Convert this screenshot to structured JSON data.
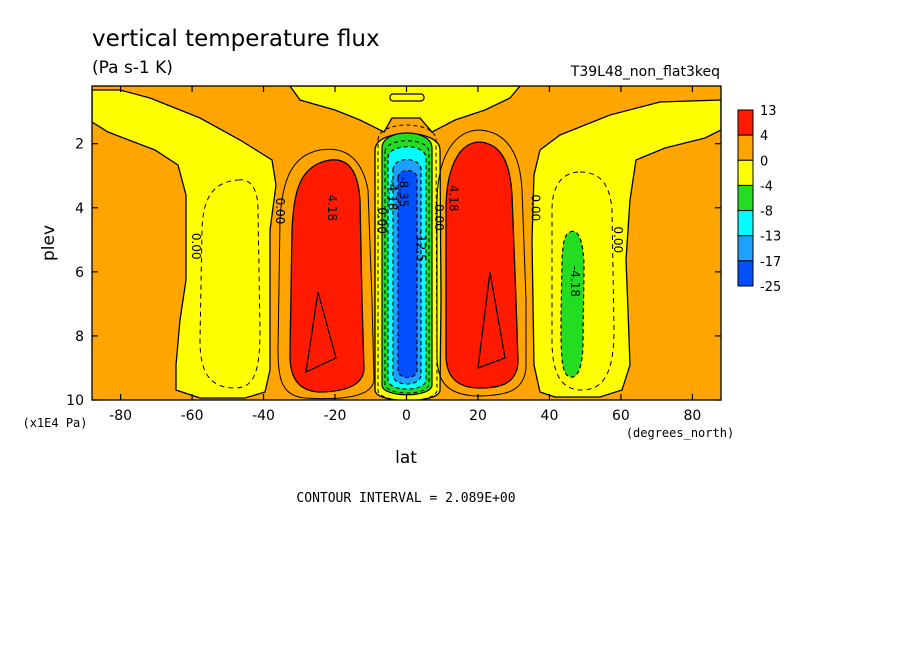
{
  "chart_data": {
    "type": "heatmap",
    "title": "vertical temperature flux",
    "subtitle": "(Pa s-1 K)",
    "run_label": "T39L48_non_flat3keq",
    "xlabel": "lat",
    "ylabel": "plev",
    "x_units": "(degrees_north)",
    "y_units": "(x1E4 Pa)",
    "xlim": [
      -88,
      88
    ],
    "ylim": [
      0.2,
      10
    ],
    "y_inverted": true,
    "x_ticks": [
      "-80",
      "-60",
      "-40",
      "-20",
      "0",
      "20",
      "40",
      "60",
      "80"
    ],
    "x_tick_values": [
      -80,
      -60,
      -40,
      -20,
      0,
      20,
      40,
      60,
      80
    ],
    "y_ticks": [
      "2",
      "4",
      "6",
      "8",
      "10"
    ],
    "y_tick_values": [
      2,
      4,
      6,
      8,
      10
    ],
    "footer": "CONTOUR INTERVAL = 2.089E+00",
    "contour_interval": 2.089,
    "legend": {
      "placement": "right",
      "levels": [
        {
          "label": "13",
          "color": "#ff1a00"
        },
        {
          "label": "4",
          "color": "#ffa500"
        },
        {
          "label": "0",
          "color": "#ffff00"
        },
        {
          "label": "-4",
          "color": "#22dd22"
        },
        {
          "label": "-8",
          "color": "#00ffff"
        },
        {
          "label": "-13",
          "color": "#1ea0ff"
        },
        {
          "label": "-17",
          "color": "#0050ff"
        },
        {
          "label": "-25",
          "color": ""
        }
      ]
    },
    "contour_labels": [
      {
        "text": "0.00",
        "lat": -60,
        "plev": 5.2
      },
      {
        "text": "0.00",
        "lat": -36.5,
        "plev": 4.1
      },
      {
        "text": "4.18",
        "lat": -22,
        "plev": 4.0
      },
      {
        "text": "0.00",
        "lat": -8,
        "plev": 4.4
      },
      {
        "text": "-4.18",
        "lat": -5,
        "plev": 3.6
      },
      {
        "text": "-8.35",
        "lat": -2,
        "plev": 3.5
      },
      {
        "text": "0.00",
        "lat": 8,
        "plev": 4.3
      },
      {
        "text": "-12.5",
        "lat": 3,
        "plev": 5.2
      },
      {
        "text": "4.18",
        "lat": 12,
        "plev": 3.7
      },
      {
        "text": "0.00",
        "lat": 35,
        "plev": 4.0
      },
      {
        "text": "0.00",
        "lat": 58,
        "plev": 5.0
      },
      {
        "text": "-4.18",
        "lat": 46,
        "plev": 6.3
      }
    ]
  }
}
